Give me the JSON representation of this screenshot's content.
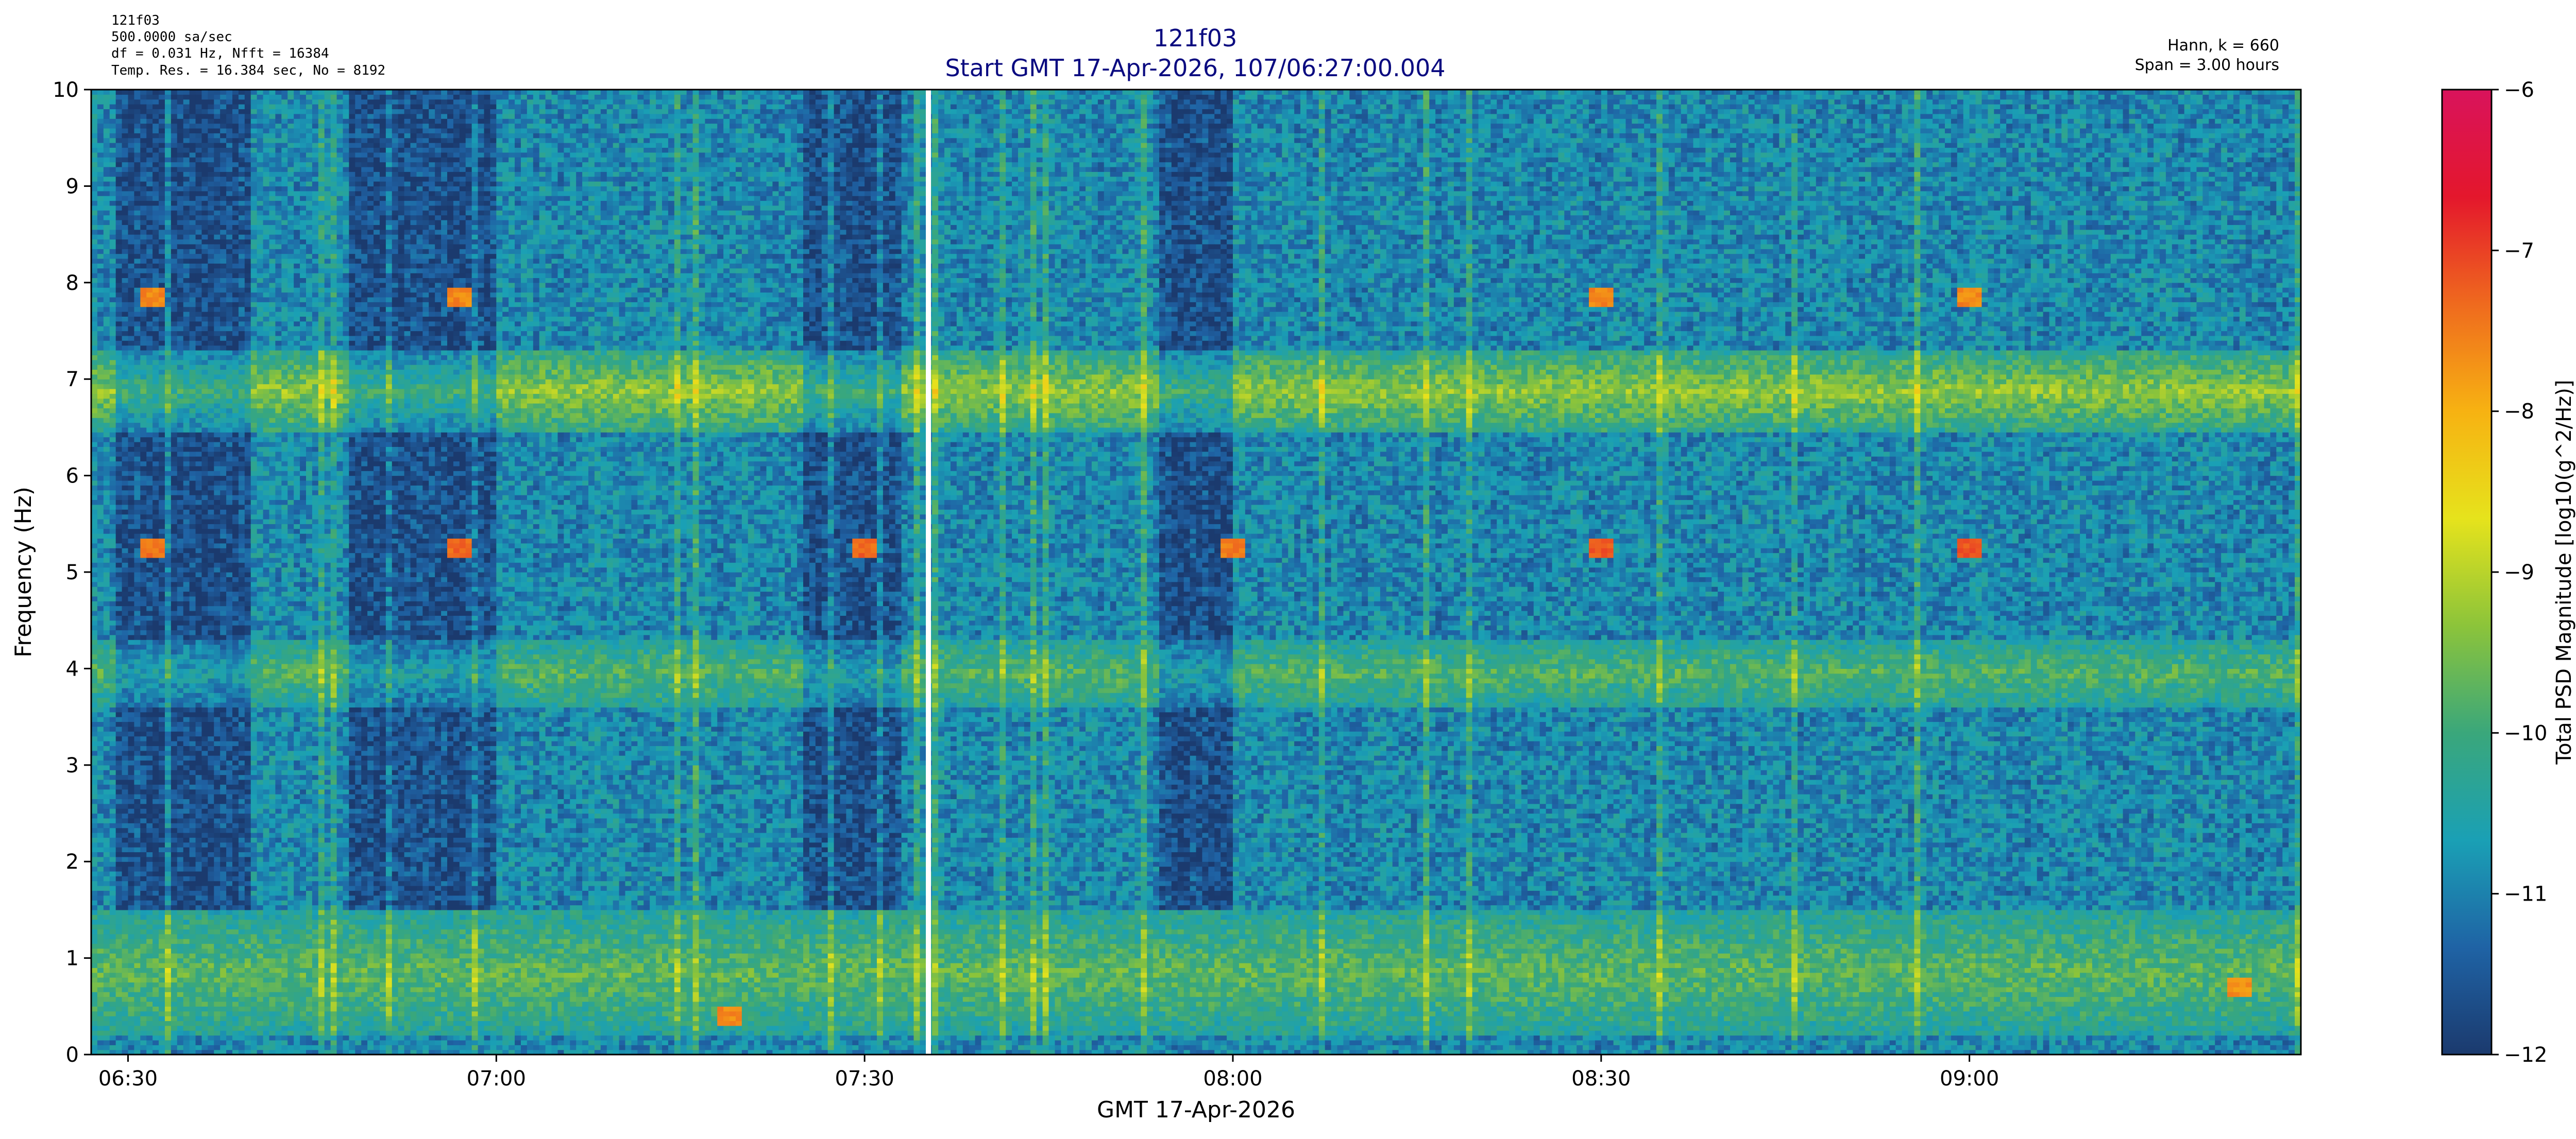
{
  "header_left": {
    "line1": "121f03",
    "line2": "500.0000 sa/sec",
    "line3": "df = 0.031 Hz,  Nfft = 16384",
    "line4": "Temp. Res. = 16.384 sec, No = 8192"
  },
  "header_right": {
    "line1": "Hann, k = 660",
    "line2": "Span = 3.00 hours"
  },
  "chart_data": {
    "type": "heatmap",
    "title": "121f03",
    "subtitle": "Start GMT 17-Apr-2026, 107/06:27:00.004",
    "xlabel": "GMT 17-Apr-2026",
    "ylabel": "Frequency (Hz)",
    "colorbar_label": "Total PSD Magnitude [log10(g^2/Hz)]",
    "x_range": [
      "06:27:00",
      "09:27:00"
    ],
    "x_ticks": [
      "06:30",
      "07:00",
      "07:30",
      "08:00",
      "08:30",
      "09:00"
    ],
    "x_tick_minutes": [
      3,
      33,
      63,
      93,
      123,
      153
    ],
    "ylim": [
      0,
      10
    ],
    "y_ticks": [
      "0",
      "1",
      "2",
      "3",
      "4",
      "5",
      "6",
      "7",
      "8",
      "9",
      "10"
    ],
    "clim": [
      -12,
      -6
    ],
    "colorbar_ticks": [
      "−6",
      "−7",
      "−8",
      "−9",
      "−10",
      "−11",
      "−12"
    ],
    "colorbar_tick_values": [
      -6,
      -7,
      -8,
      -9,
      -10,
      -11,
      -12
    ],
    "colormap": [
      "#1b3a6e",
      "#1f63a5",
      "#1aa0b5",
      "#3aa77b",
      "#8cc43a",
      "#e6e31c",
      "#f7b212",
      "#ef6a1e",
      "#e4172c",
      "#d9135c"
    ],
    "data_gap_minute": 68.2,
    "background_level": -10.9,
    "bands": [
      {
        "freq": [
          6.45,
          7.3
        ],
        "level": -9.3
      },
      {
        "freq": [
          3.6,
          4.3
        ],
        "level": -9.8
      },
      {
        "freq": [
          0.2,
          1.5
        ],
        "level": -9.7
      }
    ],
    "quiet_periods_minutes": [
      [
        2,
        13
      ],
      [
        21,
        33
      ],
      [
        58,
        66
      ],
      [
        87,
        93
      ]
    ],
    "hot_spots": [
      {
        "minute": 5,
        "freq": 5.25,
        "level": -7.4
      },
      {
        "minute": 5,
        "freq": 7.85,
        "level": -7.6
      },
      {
        "minute": 30,
        "freq": 5.25,
        "level": -7.3
      },
      {
        "minute": 30,
        "freq": 7.85,
        "level": -7.6
      },
      {
        "minute": 63,
        "freq": 5.25,
        "level": -7.3
      },
      {
        "minute": 93,
        "freq": 5.25,
        "level": -7.5
      },
      {
        "minute": 123,
        "freq": 5.25,
        "level": -7.2
      },
      {
        "minute": 123,
        "freq": 7.85,
        "level": -7.6
      },
      {
        "minute": 153,
        "freq": 5.25,
        "level": -7.2
      },
      {
        "minute": 153,
        "freq": 7.85,
        "level": -7.6
      },
      {
        "minute": 52,
        "freq": 0.4,
        "level": -7.6
      },
      {
        "minute": 175,
        "freq": 0.7,
        "level": -7.7
      }
    ]
  }
}
